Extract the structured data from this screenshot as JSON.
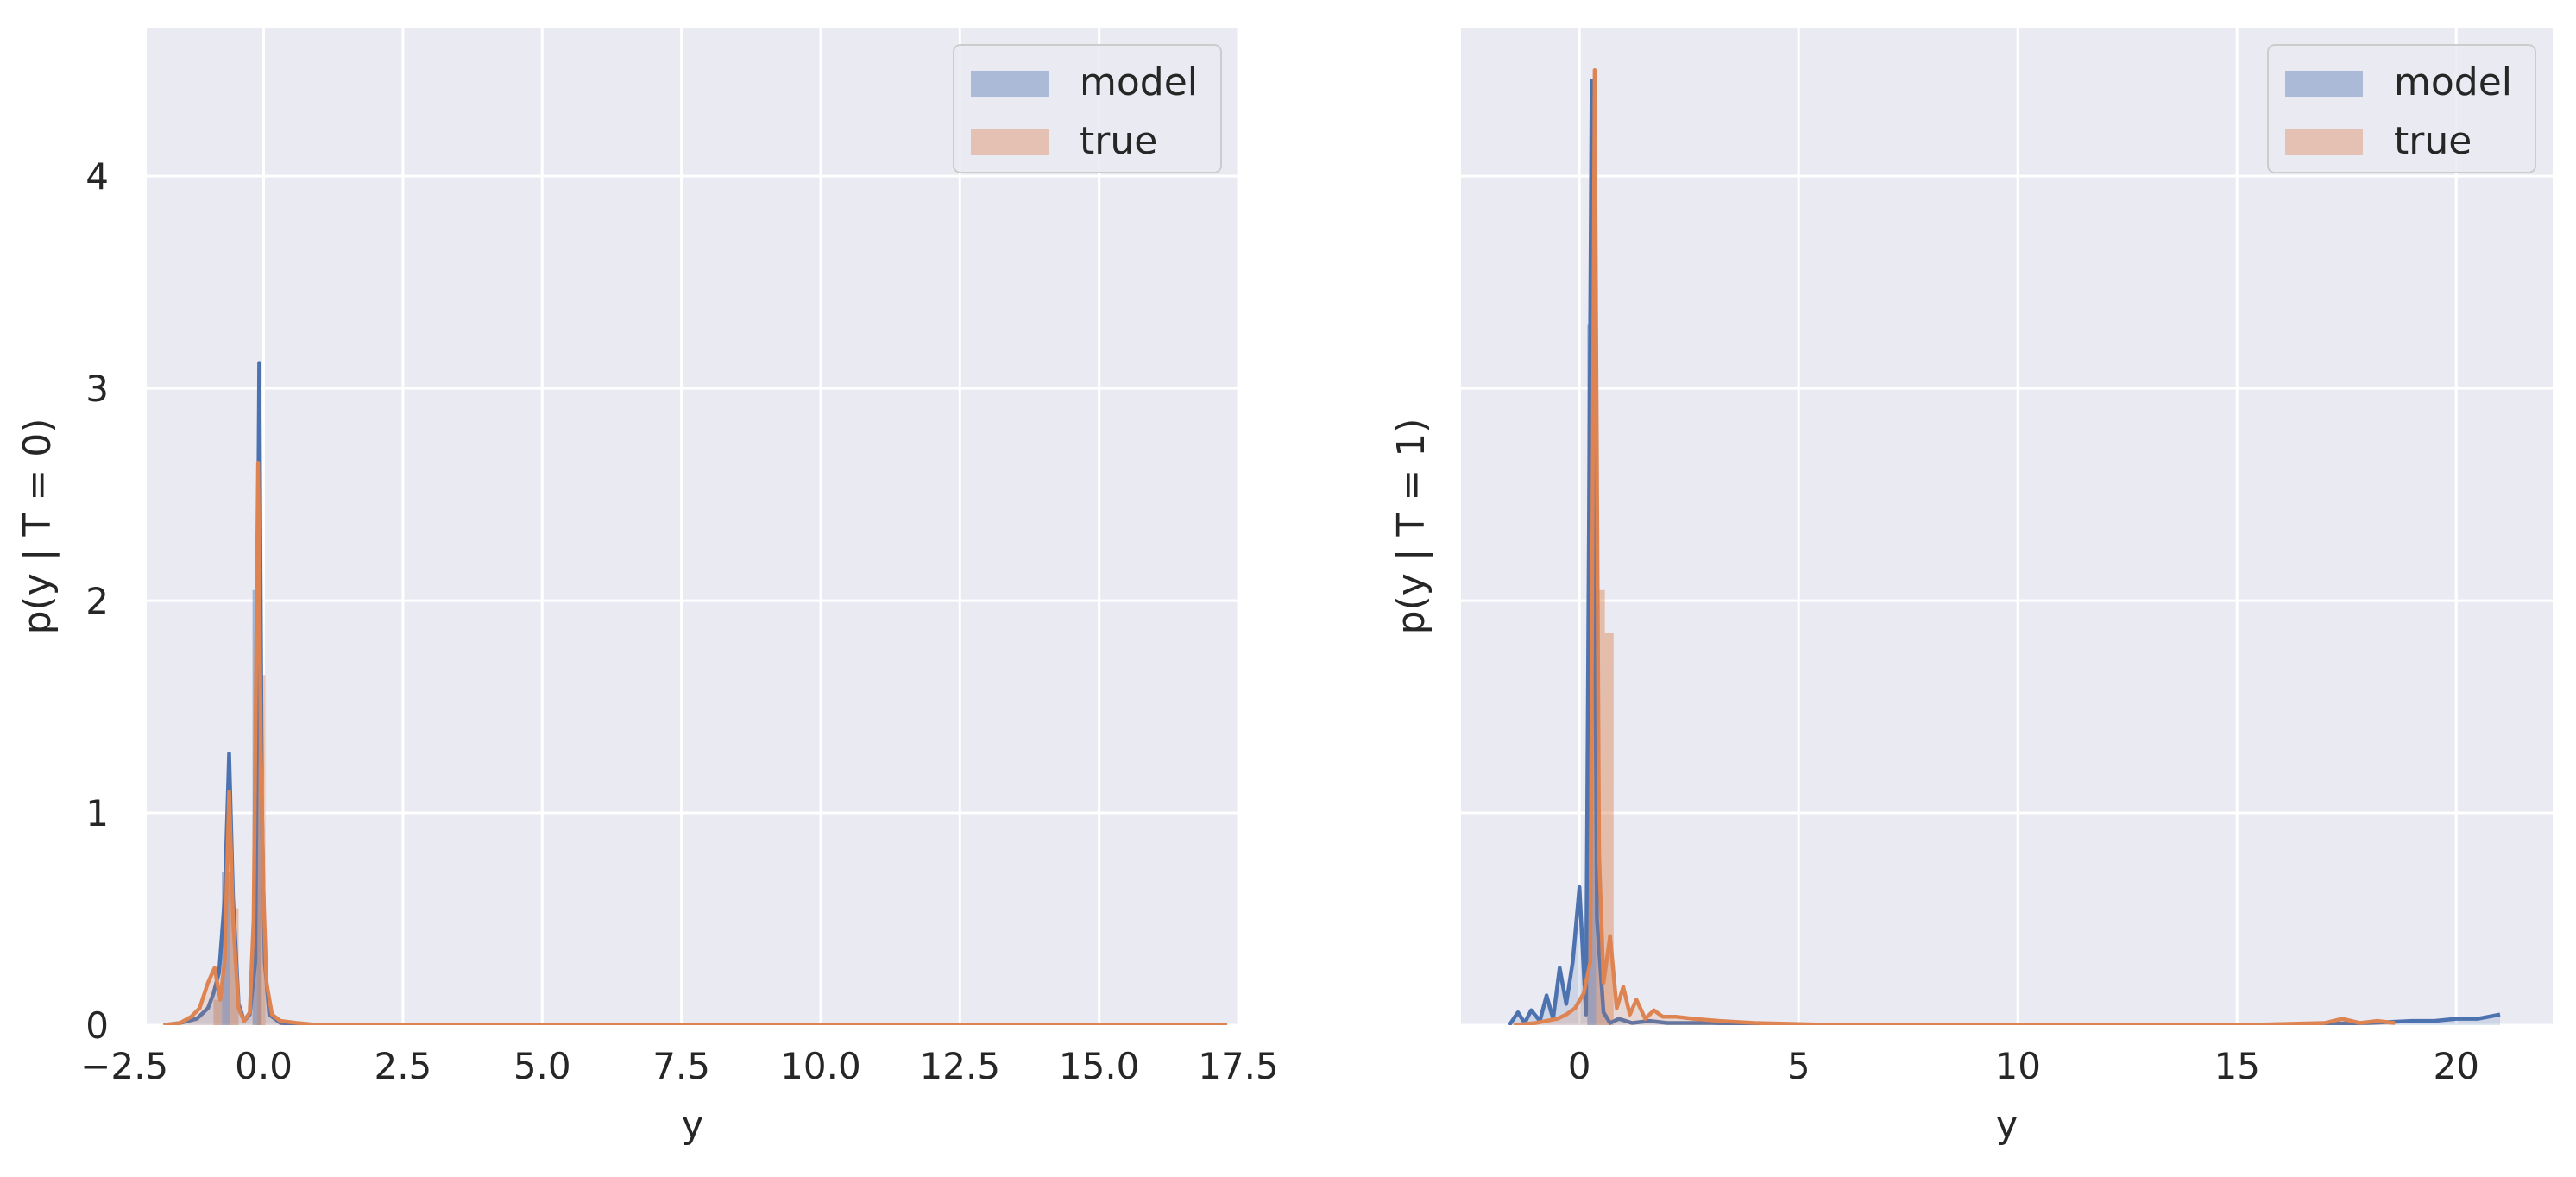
{
  "colors": {
    "model": "#4c72b0",
    "true": "#dd8452",
    "axes_background": "#eaeaf2",
    "grid": "#ffffff",
    "text": "#262626"
  },
  "chart_data": [
    {
      "type": "area",
      "title": "",
      "xlabel": "y",
      "ylabel": "p(y | T = 0)",
      "xlim": [
        -2.1,
        17.5
      ],
      "ylim": [
        0,
        4.7
      ],
      "xticks": [
        -2.5,
        0.0,
        2.5,
        5.0,
        7.5,
        10.0,
        12.5,
        15.0,
        17.5
      ],
      "xtick_labels": [
        "−2.5",
        "0.0",
        "2.5",
        "5.0",
        "7.5",
        "10.0",
        "12.5",
        "15.0",
        "17.5"
      ],
      "yticks": [
        0,
        1,
        2,
        3,
        4
      ],
      "ytick_labels": [
        "0",
        "1",
        "2",
        "3",
        "4"
      ],
      "grid": true,
      "legend": {
        "placement": "upper right",
        "entries": [
          "model",
          "true"
        ]
      },
      "series": [
        {
          "name": "model",
          "color": "#4c72b0",
          "x": [
            -1.8,
            -1.5,
            -1.2,
            -1.0,
            -0.9,
            -0.8,
            -0.7,
            -0.62,
            -0.55,
            -0.45,
            -0.35,
            -0.25,
            -0.15,
            -0.08,
            -0.03,
            0.02,
            0.1,
            0.3,
            1.0,
            3.0,
            10.0,
            17.3
          ],
          "y": [
            0.0,
            0.01,
            0.03,
            0.08,
            0.15,
            0.25,
            0.6,
            1.28,
            0.6,
            0.1,
            0.02,
            0.05,
            0.3,
            3.12,
            1.0,
            0.3,
            0.05,
            0.01,
            0.0,
            0.0,
            0.0,
            0.0
          ]
        },
        {
          "name": "true",
          "color": "#dd8452",
          "x": [
            -1.8,
            -1.5,
            -1.3,
            -1.15,
            -1.0,
            -0.88,
            -0.78,
            -0.7,
            -0.62,
            -0.55,
            -0.45,
            -0.35,
            -0.25,
            -0.18,
            -0.1,
            -0.05,
            0.0,
            0.05,
            0.15,
            0.3,
            0.6,
            1.0,
            3.0,
            10.0,
            17.3
          ],
          "y": [
            0.0,
            0.01,
            0.04,
            0.08,
            0.2,
            0.27,
            0.12,
            0.3,
            1.1,
            0.5,
            0.08,
            0.02,
            0.06,
            0.5,
            2.65,
            1.3,
            0.6,
            0.2,
            0.05,
            0.02,
            0.01,
            0.0,
            0.0,
            0.0,
            0.0
          ]
        }
      ],
      "histogram_bars": [
        {
          "series": "model",
          "x0": -0.75,
          "x1": -0.6,
          "height": 0.72
        },
        {
          "series": "model",
          "x0": -0.2,
          "x1": -0.05,
          "height": 2.05
        },
        {
          "series": "true",
          "x0": -0.9,
          "x1": -0.75,
          "height": 0.12
        },
        {
          "series": "true",
          "x0": -0.6,
          "x1": -0.45,
          "height": 0.55
        },
        {
          "series": "true",
          "x0": -0.12,
          "x1": 0.03,
          "height": 1.65
        }
      ]
    },
    {
      "type": "area",
      "title": "",
      "xlabel": "y",
      "ylabel": "p(y | T = 1)",
      "xlim": [
        -2.7,
        22.2
      ],
      "ylim": [
        0,
        4.7
      ],
      "xticks": [
        0,
        5,
        10,
        15,
        20
      ],
      "xtick_labels": [
        "0",
        "5",
        "10",
        "15",
        "20"
      ],
      "yticks": [
        0,
        1,
        2,
        3,
        4
      ],
      "ytick_labels": [],
      "grid": true,
      "legend": {
        "placement": "upper right",
        "entries": [
          "model",
          "true"
        ]
      },
      "series": [
        {
          "name": "model",
          "color": "#4c72b0",
          "x": [
            -1.6,
            -1.4,
            -1.25,
            -1.1,
            -0.9,
            -0.75,
            -0.6,
            -0.45,
            -0.3,
            -0.15,
            0.0,
            0.15,
            0.28,
            0.4,
            0.55,
            0.7,
            0.9,
            1.2,
            1.6,
            2.0,
            3.0,
            5.0,
            10.0,
            15.0,
            18.0,
            19.0,
            19.5,
            20.0,
            20.5,
            21.0
          ],
          "y": [
            0.0,
            0.06,
            0.01,
            0.07,
            0.02,
            0.14,
            0.03,
            0.27,
            0.1,
            0.3,
            0.65,
            0.05,
            4.45,
            0.5,
            0.06,
            0.01,
            0.03,
            0.01,
            0.02,
            0.01,
            0.01,
            0.0,
            0.0,
            0.0,
            0.01,
            0.02,
            0.02,
            0.03,
            0.03,
            0.05
          ]
        },
        {
          "name": "true",
          "color": "#dd8452",
          "x": [
            -1.5,
            -1.0,
            -0.5,
            -0.3,
            -0.1,
            0.1,
            0.25,
            0.35,
            0.45,
            0.55,
            0.7,
            0.85,
            1.0,
            1.15,
            1.3,
            1.5,
            1.7,
            1.9,
            2.2,
            2.6,
            3.2,
            4.0,
            6.0,
            10.0,
            15.0,
            17.0,
            17.4,
            17.8,
            18.2,
            18.6
          ],
          "y": [
            0.0,
            0.01,
            0.03,
            0.05,
            0.08,
            0.15,
            0.3,
            4.5,
            0.8,
            0.2,
            0.42,
            0.08,
            0.18,
            0.05,
            0.12,
            0.03,
            0.07,
            0.04,
            0.04,
            0.03,
            0.02,
            0.01,
            0.0,
            0.0,
            0.0,
            0.01,
            0.03,
            0.01,
            0.02,
            0.01
          ]
        }
      ],
      "histogram_bars": [
        {
          "series": "model",
          "x0": 0.18,
          "x1": 0.38,
          "height": 3.3
        },
        {
          "series": "true",
          "x0": 0.38,
          "x1": 0.58,
          "height": 2.05
        },
        {
          "series": "true",
          "x0": 0.58,
          "x1": 0.78,
          "height": 1.85
        }
      ]
    }
  ]
}
